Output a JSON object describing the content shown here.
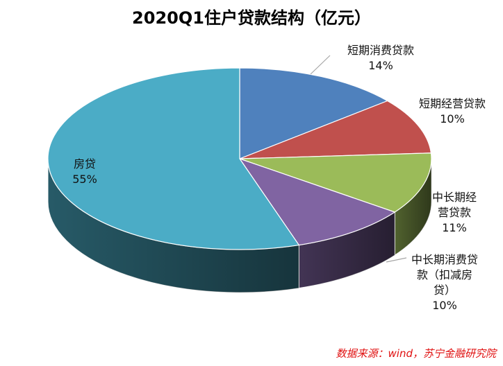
{
  "chart_data": {
    "type": "pie",
    "title": "2020Q1住户贷款结构（亿元）",
    "style": "3d",
    "slices": [
      {
        "name": "短期消费贷款",
        "label_lines": [
          "短期消费贷款"
        ],
        "percent_label": "14%",
        "value": 14,
        "color": "#4F81BD"
      },
      {
        "name": "短期经营贷款",
        "label_lines": [
          "短期经营贷款"
        ],
        "percent_label": "10%",
        "value": 10,
        "color": "#C0504D"
      },
      {
        "name": "中长期经营贷款",
        "label_lines": [
          "中长期经",
          "营贷款"
        ],
        "percent_label": "11%",
        "value": 11,
        "color": "#9BBB59"
      },
      {
        "name": "中长期消费贷款（扣减房贷）",
        "label_lines": [
          "中长期消费贷",
          "款（扣减房",
          "贷）"
        ],
        "percent_label": "10%",
        "value": 10,
        "color": "#8064A2"
      },
      {
        "name": "房贷",
        "label_lines": [
          "房贷"
        ],
        "percent_label": "55%",
        "value": 55,
        "color": "#4BACC6"
      }
    ]
  },
  "source": "数据来源：wind，苏宁金融研究院"
}
